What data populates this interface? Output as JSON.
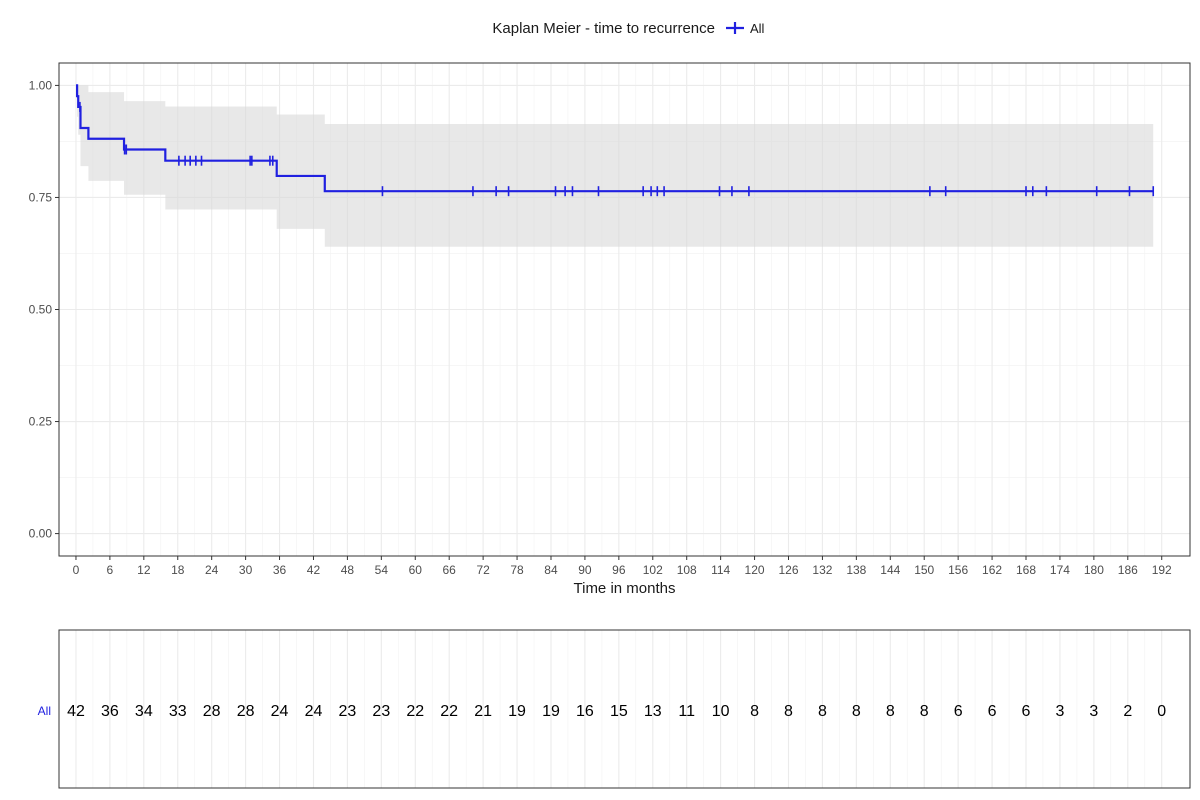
{
  "chart_data": {
    "type": "line",
    "subtype": "kaplan-meier",
    "legend": {
      "title": "Kaplan Meier - time to recurrence",
      "entries": [
        {
          "label": "All",
          "color": "#2020e0"
        }
      ],
      "placement": "top"
    },
    "xlabel": "Time in months",
    "ylabel": "",
    "xlim": [
      -3,
      197
    ],
    "ylim": [
      -0.05,
      1.05
    ],
    "grid": true,
    "x_ticks": [
      0,
      6,
      12,
      18,
      24,
      30,
      36,
      42,
      48,
      54,
      60,
      66,
      72,
      78,
      84,
      90,
      96,
      102,
      108,
      114,
      120,
      126,
      132,
      138,
      144,
      150,
      156,
      162,
      168,
      174,
      180,
      186,
      192
    ],
    "y_ticks": [
      {
        "value": 0.0,
        "label": "0.00"
      },
      {
        "value": 0.25,
        "label": "0.25"
      },
      {
        "value": 0.5,
        "label": "0.50"
      },
      {
        "value": 0.75,
        "label": "0.75"
      },
      {
        "value": 1.0,
        "label": "1.00"
      }
    ],
    "series": [
      {
        "name": "All",
        "color": "#2020e0",
        "steps": [
          {
            "x": 0,
            "y": 1.0
          },
          {
            "x": 0.2,
            "y": 0.976
          },
          {
            "x": 0.4,
            "y": 0.952
          },
          {
            "x": 0.8,
            "y": 0.905
          },
          {
            "x": 2.2,
            "y": 0.881
          },
          {
            "x": 8.5,
            "y": 0.857
          },
          {
            "x": 15.8,
            "y": 0.832
          },
          {
            "x": 35.5,
            "y": 0.798
          },
          {
            "x": 44.0,
            "y": 0.764
          },
          {
            "x": 190.5,
            "y": 0.764
          }
        ],
        "censored": [
          0.7,
          8.6,
          8.9,
          18.2,
          19.3,
          20.2,
          21.2,
          22.2,
          30.8,
          31.1,
          34.3,
          34.8,
          54.2,
          70.2,
          74.3,
          76.5,
          84.8,
          86.5,
          87.8,
          92.4,
          100.3,
          101.7,
          102.8,
          104.0,
          113.8,
          116.0,
          119.0,
          151.0,
          153.8,
          168.0,
          169.2,
          171.6,
          180.5,
          186.3,
          190.5
        ],
        "ci_band": [
          {
            "x": 0,
            "lower": 1.0,
            "upper": 1.0
          },
          {
            "x": 0.2,
            "lower": 0.93,
            "upper": 1.0
          },
          {
            "x": 0.4,
            "lower": 0.89,
            "upper": 1.0
          },
          {
            "x": 0.8,
            "lower": 0.82,
            "upper": 1.0
          },
          {
            "x": 2.2,
            "lower": 0.787,
            "upper": 0.985
          },
          {
            "x": 8.5,
            "lower": 0.756,
            "upper": 0.965
          },
          {
            "x": 15.8,
            "lower": 0.723,
            "upper": 0.953
          },
          {
            "x": 35.5,
            "lower": 0.68,
            "upper": 0.935
          },
          {
            "x": 44.0,
            "lower": 0.64,
            "upper": 0.914
          },
          {
            "x": 190.5,
            "lower": 0.64,
            "upper": 0.914
          }
        ]
      }
    ],
    "risk_table": {
      "strata_label": "All",
      "strata_color": "#2020e0",
      "times": [
        0,
        6,
        12,
        18,
        24,
        30,
        36,
        42,
        48,
        54,
        60,
        66,
        72,
        78,
        84,
        90,
        96,
        102,
        108,
        114,
        120,
        126,
        132,
        138,
        144,
        150,
        156,
        162,
        168,
        174,
        180,
        186,
        192
      ],
      "counts": [
        "42",
        "36",
        "34",
        "33",
        "28",
        "28",
        "24",
        "24",
        "23",
        "23",
        "22",
        "22",
        "21",
        "19",
        "19",
        "16",
        "15",
        "13",
        "11",
        "10",
        "8",
        "8",
        "8",
        "8",
        "8",
        "8",
        "6",
        "6",
        "6",
        "3",
        "3",
        "2",
        "0"
      ]
    }
  }
}
